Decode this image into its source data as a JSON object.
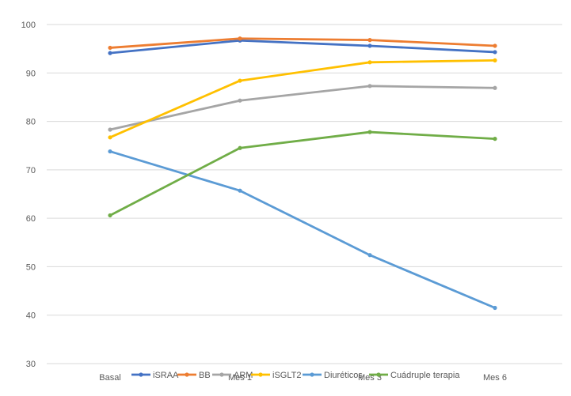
{
  "chart_data": {
    "type": "line",
    "categories": [
      "Basal",
      "Mes 1",
      "Mes 3",
      "Mes 6"
    ],
    "ylim": [
      30,
      100
    ],
    "yticks": [
      30,
      40,
      50,
      60,
      70,
      80,
      90,
      100
    ],
    "grid": true,
    "legend_position": "bottom",
    "series": [
      {
        "name": "iSRAA",
        "color": "#4472C4",
        "values": [
          94.1,
          96.7,
          95.6,
          94.3
        ]
      },
      {
        "name": "BB",
        "color": "#ED7D31",
        "values": [
          95.2,
          97.1,
          96.8,
          95.6
        ]
      },
      {
        "name": "ARM",
        "color": "#A5A5A5",
        "values": [
          78.3,
          84.3,
          87.3,
          86.9
        ]
      },
      {
        "name": "iSGLT2",
        "color": "#FFC000",
        "values": [
          76.7,
          88.4,
          92.2,
          92.6
        ]
      },
      {
        "name": "Diuréticos",
        "color": "#5B9BD5",
        "values": [
          73.8,
          65.7,
          52.4,
          41.5
        ]
      },
      {
        "name": "Cuádruple terapia",
        "color": "#70AD47",
        "values": [
          60.6,
          74.5,
          77.8,
          76.4
        ]
      }
    ]
  }
}
